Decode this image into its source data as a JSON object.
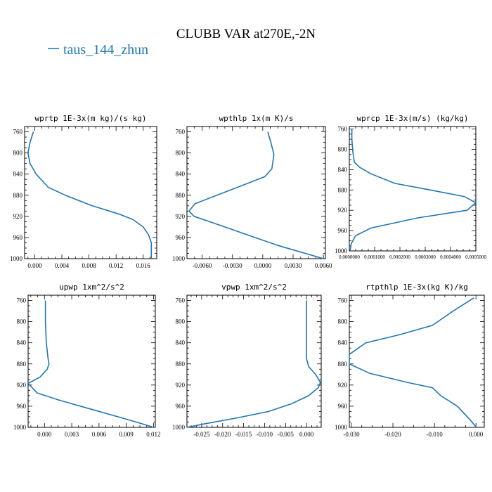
{
  "figure": {
    "title": "CLUBB VAR at270E,-2N",
    "legend": "taus_144_zhun",
    "series_color": "#1f77b4"
  },
  "chart_data": [
    {
      "type": "line",
      "title": "wprtp  1E-3x(m kg)/(s kg)",
      "xlim": [
        -0.0015,
        0.018
      ],
      "ylim": [
        1000,
        750
      ],
      "xticks": [
        "0.000",
        "0.004",
        "0.008",
        "0.012",
        "0.016"
      ],
      "xtick_values": [
        0,
        0.004,
        0.008,
        0.012,
        0.016
      ],
      "yticks": [
        "760",
        "800",
        "840",
        "880",
        "920",
        "960",
        "1000"
      ],
      "x": [
        -0.0002,
        -0.0007,
        -0.001,
        -0.0007,
        0.0002,
        0.002,
        0.0045,
        0.0085,
        0.0125,
        0.0145,
        0.016,
        0.0168,
        0.0172,
        0.0172,
        0.0172
      ],
      "y": [
        760,
        780,
        800,
        820,
        840,
        865,
        880,
        900,
        916,
        926,
        940,
        955,
        970,
        985,
        1000
      ]
    },
    {
      "type": "line",
      "title": "wpthlp  1x(m K)/s",
      "xlim": [
        -0.0075,
        0.0062
      ],
      "ylim": [
        1000,
        750
      ],
      "xticks": [
        "-0.0060",
        "-0.0030",
        "0.0000",
        "0.0030",
        "0.0060"
      ],
      "xtick_values": [
        -0.006,
        -0.003,
        0,
        0.003,
        0.006
      ],
      "yticks": [
        "760",
        "800",
        "840",
        "880",
        "920",
        "960",
        "1000"
      ],
      "x": [
        0.0005,
        0.0008,
        0.0011,
        0.0009,
        0.0002,
        -0.0025,
        -0.0067,
        -0.0073,
        -0.0068,
        -0.0045,
        -0.0015,
        0.0015,
        0.006
      ],
      "y": [
        760,
        780,
        803,
        830,
        845,
        865,
        896,
        910,
        920,
        935,
        955,
        975,
        1000
      ]
    },
    {
      "type": "line",
      "title": "wprcp  1E-3x(m/s) (kg/kg)",
      "xlim": [
        0,
        0.0005
      ],
      "ylim": [
        1000,
        755
      ],
      "xticks": [
        "0.0000000",
        "0.0001000",
        "0.0002000",
        "0.0003000",
        "0.0004000",
        "0.0005000"
      ],
      "xtick_values": [
        0,
        0.0001,
        0.0002,
        0.0003,
        0.0004,
        0.0005
      ],
      "yticks": [
        "760",
        "800",
        "840",
        "880",
        "920",
        "960",
        "1000"
      ],
      "x": [
        1e-05,
        1e-05,
        1.4e-05,
        2e-05,
        4e-05,
        8.5e-05,
        0.00018,
        0.00032,
        0.000455,
        0.0005,
        0.000465,
        0.00027,
        8.5e-05,
        2.5e-05,
        8e-06,
        3e-06
      ],
      "y": [
        760,
        780,
        805,
        825,
        835,
        848,
        867,
        880,
        893,
        905,
        920,
        935,
        955,
        970,
        985,
        1000
      ]
    },
    {
      "type": "line",
      "title": "upwp  1xm^2/s^2",
      "xlim": [
        -0.0018,
        0.0122
      ],
      "ylim": [
        1000,
        750
      ],
      "xticks": [
        "0.000",
        "0.003",
        "0.006",
        "0.009",
        "0.012"
      ],
      "xtick_values": [
        0,
        0.003,
        0.006,
        0.009,
        0.012
      ],
      "yticks": [
        "760",
        "800",
        "840",
        "880",
        "920",
        "960",
        "1000"
      ],
      "x": [
        0.0001,
        0.0001,
        0.0002,
        0.0004,
        0.0005,
        0.0003,
        -0.0005,
        -0.0018,
        -0.0008,
        0.0015,
        0.005,
        0.0085,
        0.0105,
        0.012
      ],
      "y": [
        760,
        800,
        840,
        870,
        880,
        890,
        905,
        917,
        935,
        948,
        965,
        982,
        992,
        1000
      ]
    },
    {
      "type": "line",
      "title": "vpwp  1xm^2/s^2",
      "xlim": [
        -0.0285,
        0.0035
      ],
      "ylim": [
        1000,
        750
      ],
      "xticks": [
        "-0.025",
        "-0.020",
        "-0.015",
        "-0.010",
        "-0.005",
        "0.000"
      ],
      "xtick_values": [
        -0.025,
        -0.02,
        -0.015,
        -0.01,
        -0.005,
        0
      ],
      "yticks": [
        "760",
        "800",
        "840",
        "880",
        "920",
        "960",
        "1000"
      ],
      "x": [
        0,
        0,
        0,
        0,
        0.0005,
        0.0022,
        0.0033,
        0.0028,
        0.0005,
        -0.0035,
        -0.009,
        -0.0165,
        -0.024,
        -0.0285
      ],
      "y": [
        760,
        800,
        840,
        870,
        885,
        900,
        915,
        925,
        940,
        955,
        970,
        982,
        993,
        1000
      ]
    },
    {
      "type": "line",
      "title": "rtpthlp  1E-3x(kg K)/kg",
      "xlim": [
        -0.0305,
        0.002
      ],
      "ylim": [
        1000,
        750
      ],
      "xticks": [
        "-0.030",
        "-0.020",
        "-0.010",
        "0.000"
      ],
      "xtick_values": [
        -0.03,
        -0.02,
        -0.01,
        0
      ],
      "yticks": [
        "760",
        "800",
        "840",
        "880",
        "920",
        "960",
        "1000"
      ],
      "x": [
        -0.0005,
        -0.0025,
        -0.0055,
        -0.0105,
        -0.0185,
        -0.0265,
        -0.0305,
        -0.0305,
        -0.0255,
        -0.0165,
        -0.0105,
        -0.0085,
        -0.0045,
        -0.0015,
        0.0001
      ],
      "y": [
        755,
        765,
        780,
        807,
        825,
        840,
        862,
        880,
        898,
        915,
        925,
        940,
        960,
        985,
        1000
      ]
    }
  ]
}
